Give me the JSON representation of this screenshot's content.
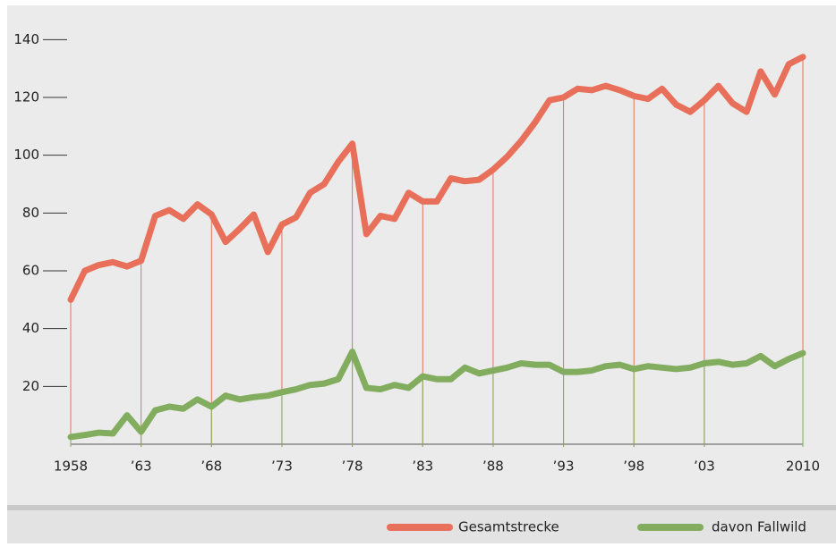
{
  "chart_data": {
    "type": "line",
    "x": [
      1958,
      1959,
      1960,
      1961,
      1962,
      1963,
      1964,
      1965,
      1966,
      1967,
      1968,
      1969,
      1970,
      1971,
      1972,
      1973,
      1974,
      1975,
      1976,
      1977,
      1978,
      1979,
      1980,
      1981,
      1982,
      1983,
      1984,
      1985,
      1986,
      1987,
      1988,
      1989,
      1990,
      1991,
      1992,
      1993,
      1994,
      1995,
      1996,
      1997,
      1998,
      1999,
      2000,
      2001,
      2002,
      2003,
      2004,
      2005,
      2006,
      2007,
      2008,
      2009,
      2010
    ],
    "series": [
      {
        "name": "Gesamtstrecke",
        "color": "#e8705a",
        "values": [
          50,
          60,
          62,
          63,
          61.5,
          63.5,
          79,
          81,
          78,
          83,
          79.5,
          70,
          74.5,
          79.5,
          66.5,
          76,
          78.5,
          87,
          90,
          97.7,
          104,
          72.7,
          79,
          78,
          87,
          84,
          84,
          92,
          91,
          91.5,
          95,
          99.5,
          105,
          111.5,
          119,
          120,
          123,
          122.5,
          124,
          122.5,
          120.5,
          119.5,
          123,
          117.5,
          115,
          119,
          124,
          118,
          115,
          129,
          121,
          131.5,
          134
        ]
      },
      {
        "name": "davon Fallwild",
        "color": "#82ad5f",
        "values": [
          2.5,
          3.2,
          4,
          3.7,
          10,
          4.3,
          11.7,
          13,
          12.3,
          15.5,
          13,
          16.8,
          15.5,
          16.3,
          16.8,
          18,
          19,
          20.5,
          21,
          22.5,
          32,
          19.5,
          19,
          20.5,
          19.5,
          23.5,
          22.5,
          22.5,
          26.5,
          24.5,
          25.5,
          26.5,
          28,
          27.5,
          27.5,
          25,
          25,
          25.5,
          27,
          27.5,
          26,
          27,
          26.5,
          26,
          26.5,
          28,
          28.5,
          27.5,
          28,
          30.5,
          27,
          29.5,
          31.5
        ]
      }
    ],
    "xlim": [
      1958,
      2010
    ],
    "xticks": [
      1958,
      {
        "value": 1963,
        "label": "’63"
      },
      {
        "value": 1968,
        "label": "’68"
      },
      {
        "value": 1973,
        "label": "’73"
      },
      {
        "value": 1978,
        "label": "’78"
      },
      {
        "value": 1983,
        "label": "’83"
      },
      {
        "value": 1988,
        "label": "’88"
      },
      {
        "value": 1993,
        "label": "’93"
      },
      {
        "value": 1998,
        "label": "’98"
      },
      {
        "value": 2003,
        "label": "’03"
      },
      2010
    ],
    "ylim": [
      0,
      150
    ],
    "yticks": [
      20,
      40,
      60,
      80,
      100,
      120,
      140
    ]
  }
}
